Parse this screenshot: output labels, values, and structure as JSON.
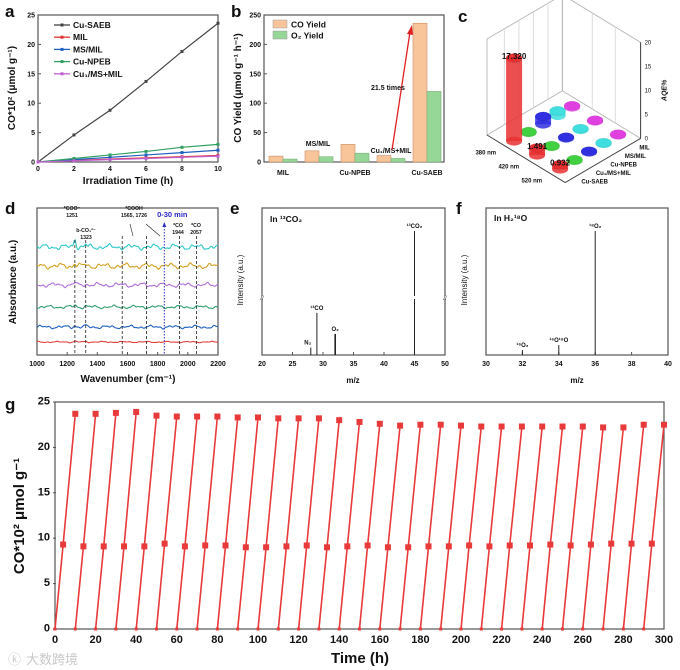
{
  "panel_letters": {
    "a": "a",
    "b": "b",
    "c": "c",
    "d": "d",
    "e": "e",
    "f": "f",
    "g": "g"
  },
  "watermark": "大数跨境",
  "chart_data": [
    {
      "id": "a",
      "type": "line",
      "xlabel": "Irradiation Time (h)",
      "ylabel": "CO*10² (μmol g⁻¹)",
      "xlim": [
        0,
        10
      ],
      "ylim": [
        0,
        25
      ],
      "xticks": [
        0,
        2,
        4,
        6,
        8,
        10
      ],
      "yticks": [
        0,
        5,
        10,
        15,
        20,
        25
      ],
      "legend_position": "top-left",
      "x": [
        0,
        2,
        4,
        6,
        8,
        10
      ],
      "series": [
        {
          "name": "Cu-SAEB",
          "color": "#444444",
          "values": [
            0,
            4.6,
            8.8,
            13.7,
            18.8,
            23.6
          ]
        },
        {
          "name": "MIL",
          "color": "#e03030",
          "values": [
            0,
            0.25,
            0.5,
            0.7,
            0.9,
            1.1
          ]
        },
        {
          "name": "MS/MIL",
          "color": "#2060c0",
          "values": [
            0,
            0.4,
            0.8,
            1.2,
            1.6,
            2.0
          ]
        },
        {
          "name": "Cu-NPEB",
          "color": "#30a060",
          "values": [
            0,
            0.6,
            1.2,
            1.8,
            2.5,
            3.0
          ]
        },
        {
          "name": "Cu₁/MS+MIL",
          "color": "#c060d0",
          "values": [
            0,
            0.2,
            0.4,
            0.6,
            0.8,
            1.0
          ]
        }
      ]
    },
    {
      "id": "b",
      "type": "bar",
      "ylabel": "CO Yield (μmol g⁻¹ h⁻¹)",
      "ylim": [
        0,
        250
      ],
      "yticks": [
        0,
        50,
        100,
        150,
        200,
        250
      ],
      "categories": [
        "MIL",
        "MS/MIL",
        "Cu-NPEB",
        "Cu₁/MS+MIL",
        "Cu-SAEB"
      ],
      "series": [
        {
          "name": "CO Yield",
          "color": "#f8c49a",
          "values": [
            10,
            19,
            30,
            11,
            236
          ]
        },
        {
          "name": "O₂ Yield",
          "color": "#96d696",
          "values": [
            5,
            9,
            15,
            6,
            120
          ]
        }
      ],
      "annotation": "21.5 times",
      "legend_position": "top-left"
    },
    {
      "id": "c",
      "type": "bar3d",
      "zlabel": "AQE%",
      "zlim": [
        0,
        20
      ],
      "zticks": [
        0,
        5,
        10,
        15,
        20
      ],
      "wavelengths": [
        "380 nm",
        "420 nm",
        "520 nm"
      ],
      "samples": [
        "Cu-SAEB",
        "Cu₁/MS+MIL",
        "Cu-NPEB",
        "MS/MIL",
        "MIL"
      ],
      "sample_colors": [
        "#e83030",
        "#40d040",
        "#3030e0",
        "#40dede",
        "#e040e0"
      ],
      "values": [
        [
          17.32,
          0.2,
          1.6,
          1.0,
          0.3
        ],
        [
          1.491,
          0.2,
          0.2,
          0.2,
          0.2
        ],
        [
          0.932,
          0.2,
          0.2,
          0.2,
          0.2
        ]
      ],
      "value_labels": [
        "17.320",
        "1.491",
        "0.932"
      ]
    },
    {
      "id": "d",
      "type": "line",
      "xlabel": "Wavenumber (cm⁻¹)",
      "ylabel": "Absorbance (a.u.)",
      "xlim": [
        1000,
        2200
      ],
      "xticks": [
        1000,
        1200,
        1400,
        1600,
        1800,
        2000,
        2200
      ],
      "trace_colors": [
        "#30c8c8",
        "#d4a020",
        "#b070d8",
        "#30a070",
        "#2060c0",
        "#e04040"
      ],
      "time_label": "0-30 min",
      "time_marker": 1844,
      "peaks": [
        {
          "pos": 1251,
          "label": "*COO⁻",
          "value": "1251"
        },
        {
          "pos": 1323,
          "label": "b-CO₃²⁻",
          "value": "1323"
        },
        {
          "pos": 1565,
          "label": "*COOH",
          "value": "1565, 1726"
        },
        {
          "pos": 1726
        },
        {
          "pos": 1944,
          "label": "*CO",
          "value": "1944"
        },
        {
          "pos": 2057,
          "label": "*CO",
          "value": "2057"
        }
      ]
    },
    {
      "id": "e",
      "type": "bar",
      "title": "In ¹³CO₂",
      "xlabel": "m/z",
      "ylabel": "Intensity (a.u.)",
      "xlim": [
        20,
        50
      ],
      "xticks": [
        20,
        25,
        30,
        35,
        40,
        45,
        50
      ],
      "peaks": [
        {
          "mz": 28,
          "label": "N₂",
          "intensity": 0.06
        },
        {
          "mz": 29,
          "label": "¹³CO",
          "intensity": 0.34
        },
        {
          "mz": 32,
          "label": "O₂",
          "intensity": 0.17
        },
        {
          "mz": 45,
          "label": "¹³CO₂",
          "intensity": 1.0
        }
      ],
      "axis_break": true
    },
    {
      "id": "f",
      "type": "bar",
      "title": "In H₂¹⁸O",
      "xlabel": "m/z",
      "ylabel": "Intensity (a.u.)",
      "xlim": [
        30,
        40
      ],
      "xticks": [
        30,
        32,
        34,
        36,
        38,
        40
      ],
      "peaks": [
        {
          "mz": 32,
          "label": "¹⁶O₂",
          "intensity": 0.04
        },
        {
          "mz": 34,
          "label": "¹⁶O¹⁸O",
          "intensity": 0.08
        },
        {
          "mz": 36,
          "label": "¹⁸O₂",
          "intensity": 1.0
        }
      ]
    },
    {
      "id": "g",
      "type": "line",
      "xlabel": "Time (h)",
      "ylabel": "CO*10² μmol g⁻¹",
      "xlim": [
        0,
        300
      ],
      "ylim": [
        0,
        25
      ],
      "xticks": [
        0,
        20,
        40,
        60,
        80,
        100,
        120,
        140,
        160,
        180,
        200,
        220,
        240,
        260,
        280,
        300
      ],
      "yticks": [
        0,
        5,
        10,
        15,
        20,
        25
      ],
      "color": "#e83a3a",
      "cycle_length_h": 10,
      "cycle_times_h": [
        0,
        4,
        10
      ],
      "mid_values": [
        9.3,
        9.1,
        9.1,
        9.1,
        9.1,
        9.4,
        9.1,
        9.2,
        9.2,
        9.0,
        9.0,
        9.1,
        9.2,
        9.0,
        9.1,
        9.2,
        9.0,
        9.0,
        9.1,
        9.1,
        9.2,
        9.1,
        9.2,
        9.2,
        9.3,
        9.2,
        9.3,
        9.4,
        9.4,
        9.4
      ],
      "peak_values": [
        23.7,
        23.7,
        23.8,
        23.9,
        23.5,
        23.4,
        23.4,
        23.4,
        23.3,
        23.3,
        23.2,
        23.2,
        23.2,
        23.0,
        22.8,
        22.6,
        22.4,
        22.5,
        22.5,
        22.4,
        22.3,
        22.3,
        22.3,
        22.3,
        22.3,
        22.3,
        22.2,
        22.2,
        22.5,
        22.5
      ]
    }
  ]
}
